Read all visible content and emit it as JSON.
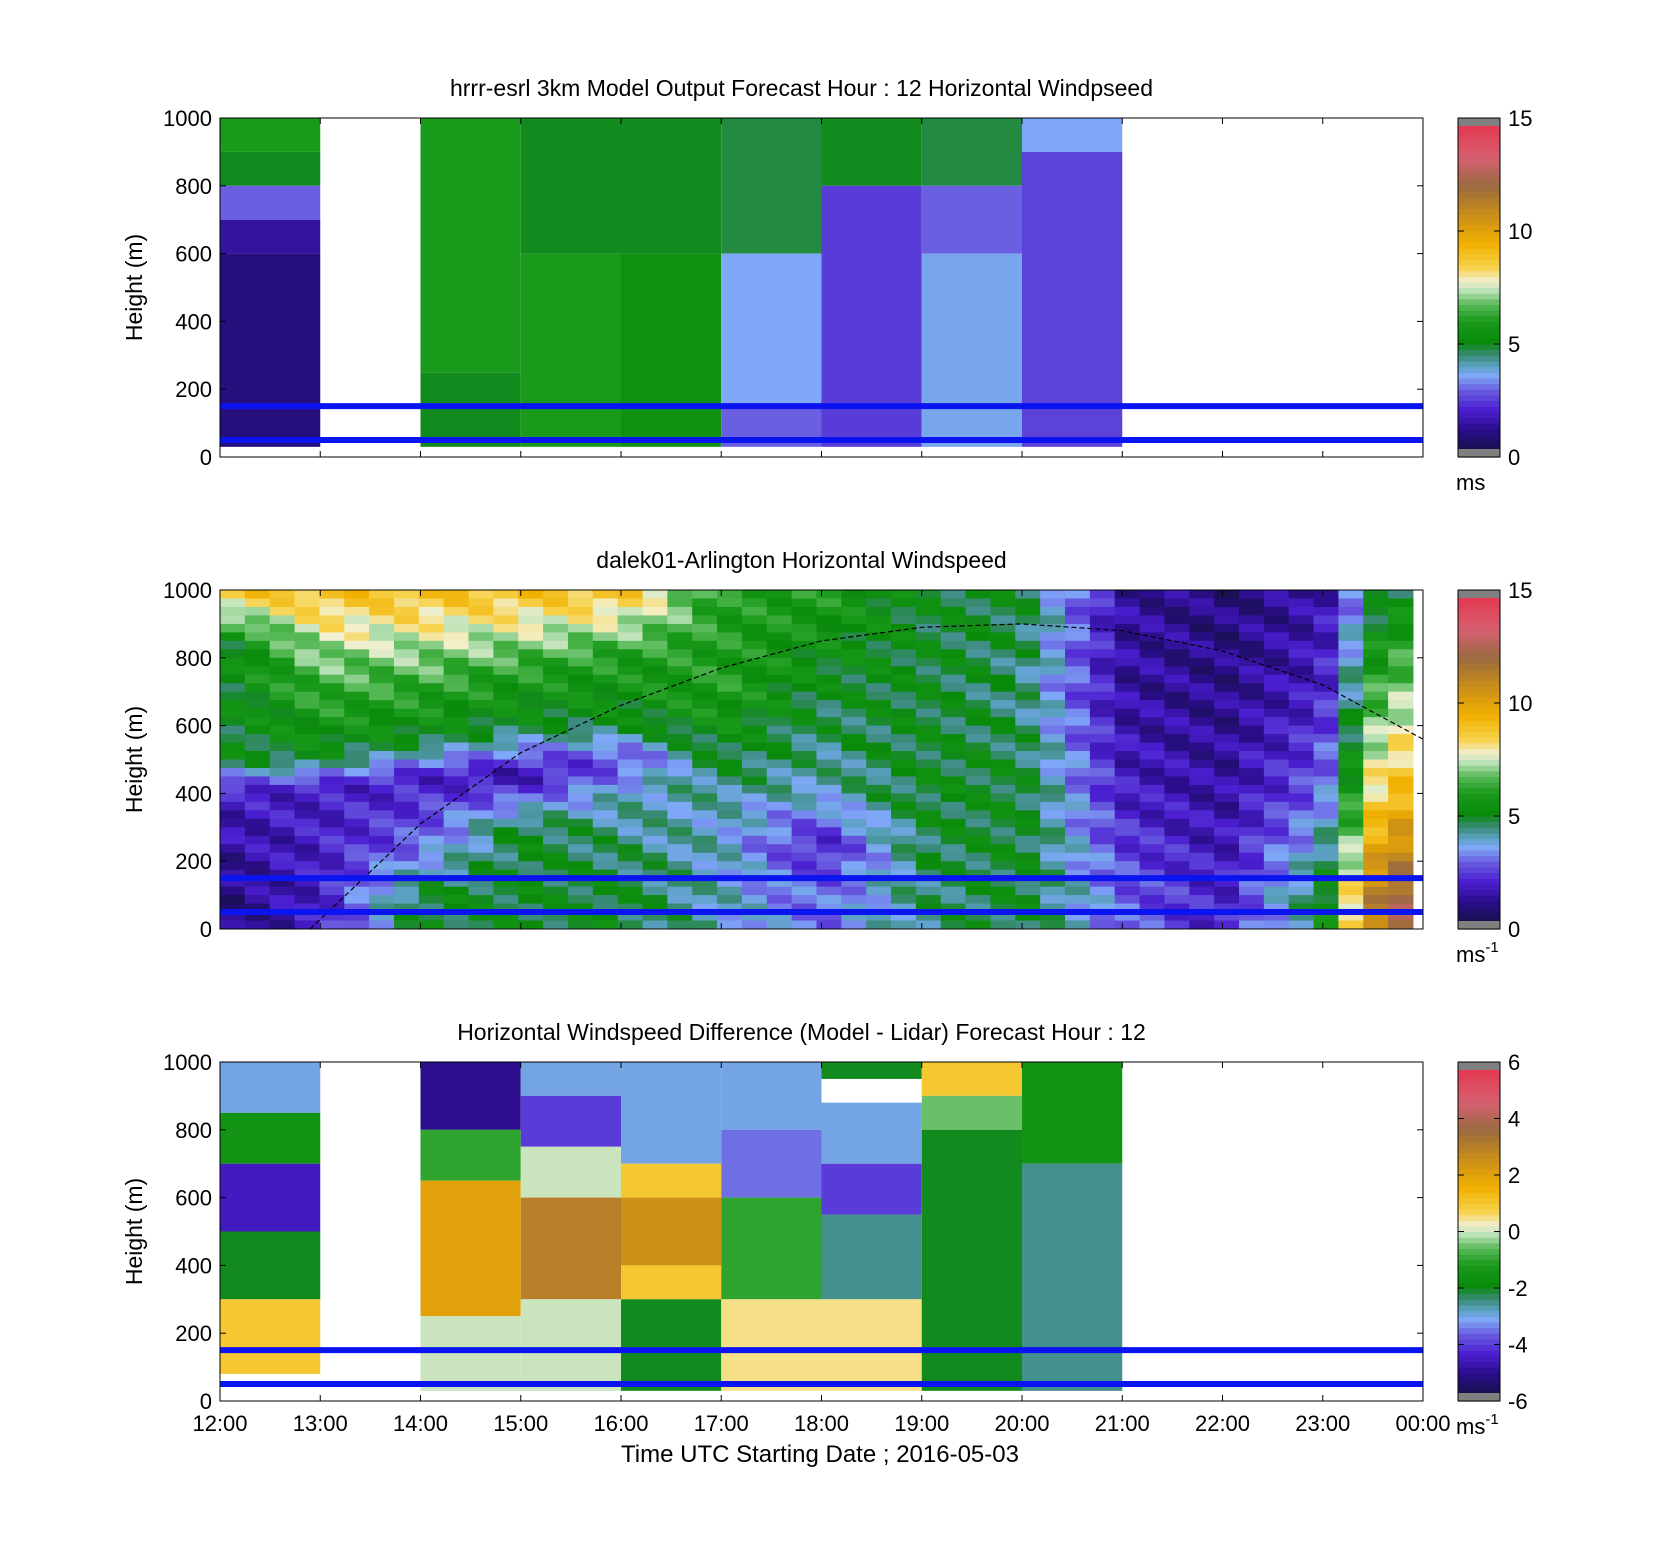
{
  "figure": {
    "xlabel": "Time UTC  Starting Date ; 2016-05-03",
    "x_ticks": [
      "12:00",
      "13:00",
      "14:00",
      "15:00",
      "16:00",
      "17:00",
      "18:00",
      "19:00",
      "20:00",
      "21:00",
      "22:00",
      "23:00",
      "00:00"
    ]
  },
  "chart_data": [
    {
      "type": "heatmap",
      "title": "hrrr-esrl 3km Model Output   Forecast Hour : 12 Horizontal Windpseed",
      "ylabel": "Height (m)",
      "xlim": [
        12,
        24
      ],
      "ylim": [
        0,
        1000
      ],
      "y_ticks": [
        "0",
        "200",
        "400",
        "600",
        "800",
        "1000"
      ],
      "colorbar": {
        "ticks": [
          "0",
          "5",
          "10",
          "15"
        ],
        "range": [
          0,
          15
        ],
        "unit": "ms",
        "unit_sup": ""
      },
      "reference_heights_m": [
        50,
        150
      ],
      "columns": [
        {
          "hour": 12,
          "values": [
            {
              "top": 1000,
              "bottom": 900,
              "speed": 6
            },
            {
              "top": 900,
              "bottom": 800,
              "speed": 5
            },
            {
              "top": 800,
              "bottom": 700,
              "speed": 3
            },
            {
              "top": 700,
              "bottom": 600,
              "speed": 1.5
            },
            {
              "top": 600,
              "bottom": 30,
              "speed": 1
            }
          ]
        },
        {
          "hour": 14,
          "values": [
            {
              "top": 1000,
              "bottom": 250,
              "speed": 6
            },
            {
              "top": 250,
              "bottom": 30,
              "speed": 5
            }
          ]
        },
        {
          "hour": 15,
          "values": [
            {
              "top": 1000,
              "bottom": 600,
              "speed": 5
            },
            {
              "top": 600,
              "bottom": 30,
              "speed": 6
            }
          ]
        },
        {
          "hour": 16,
          "values": [
            {
              "top": 1000,
              "bottom": 600,
              "speed": 5
            },
            {
              "top": 600,
              "bottom": 30,
              "speed": 5.5
            }
          ]
        },
        {
          "hour": 17,
          "values": [
            {
              "top": 1000,
              "bottom": 600,
              "speed": 4.8
            },
            {
              "top": 600,
              "bottom": 150,
              "speed": 3.6
            },
            {
              "top": 150,
              "bottom": 30,
              "speed": 3
            }
          ]
        },
        {
          "hour": 18,
          "values": [
            {
              "top": 1000,
              "bottom": 800,
              "speed": 5
            },
            {
              "top": 800,
              "bottom": 30,
              "speed": 2.5
            }
          ]
        },
        {
          "hour": 19,
          "values": [
            {
              "top": 1000,
              "bottom": 800,
              "speed": 4.8
            },
            {
              "top": 800,
              "bottom": 600,
              "speed": 3
            },
            {
              "top": 600,
              "bottom": 30,
              "speed": 3.7
            }
          ]
        },
        {
          "hour": 20,
          "values": [
            {
              "top": 1000,
              "bottom": 900,
              "speed": 3.6
            },
            {
              "top": 900,
              "bottom": 30,
              "speed": 2.6
            }
          ]
        }
      ]
    },
    {
      "type": "heatmap",
      "title": "dalek01-Arlington  Horizontal Windspeed",
      "ylabel": "Height (m)",
      "xlim": [
        12,
        24
      ],
      "ylim": [
        0,
        1000
      ],
      "y_ticks": [
        "0",
        "200",
        "400",
        "600",
        "800",
        "1000"
      ],
      "colorbar": {
        "ticks": [
          "0",
          "5",
          "10",
          "15"
        ],
        "range": [
          0,
          15
        ],
        "unit": "ms",
        "unit_sup": "-1"
      },
      "reference_heights_m": [
        50,
        150
      ],
      "mixing_layer_curve": [
        [
          12.9,
          0
        ],
        [
          14,
          310
        ],
        [
          15,
          520
        ],
        [
          16,
          660
        ],
        [
          17,
          770
        ],
        [
          18,
          850
        ],
        [
          19,
          890
        ],
        [
          20,
          900
        ],
        [
          21,
          880
        ],
        [
          22,
          820
        ],
        [
          23,
          720
        ],
        [
          24,
          560
        ]
      ],
      "column_profiles": [
        {
          "hour": 12.0,
          "speed_by_height": [
            [
              1000,
              9
            ],
            [
              850,
              5
            ],
            [
              500,
              5
            ],
            [
              400,
              2
            ],
            [
              100,
              1
            ]
          ]
        },
        {
          "hour": 13.0,
          "speed_by_height": [
            [
              1000,
              9
            ],
            [
              800,
              7
            ],
            [
              500,
              5
            ],
            [
              420,
              2
            ],
            [
              100,
              2
            ]
          ]
        },
        {
          "hour": 14.0,
          "speed_by_height": [
            [
              1000,
              9
            ],
            [
              800,
              7
            ],
            [
              550,
              5
            ],
            [
              450,
              2
            ],
            [
              250,
              3
            ],
            [
              100,
              5
            ]
          ]
        },
        {
          "hour": 15.0,
          "speed_by_height": [
            [
              1000,
              9
            ],
            [
              750,
              6
            ],
            [
              600,
              5
            ],
            [
              450,
              1.5
            ],
            [
              300,
              5
            ],
            [
              100,
              5
            ]
          ]
        },
        {
          "hour": 16.0,
          "speed_by_height": [
            [
              1000,
              9
            ],
            [
              800,
              6
            ],
            [
              600,
              5
            ],
            [
              500,
              2.5
            ],
            [
              400,
              4
            ],
            [
              100,
              5
            ]
          ]
        },
        {
          "hour": 17.0,
          "speed_by_height": [
            [
              1000,
              6
            ],
            [
              700,
              6
            ],
            [
              500,
              5
            ],
            [
              350,
              4
            ],
            [
              100,
              4
            ]
          ]
        },
        {
          "hour": 18.0,
          "speed_by_height": [
            [
              1000,
              6
            ],
            [
              700,
              5
            ],
            [
              400,
              4
            ],
            [
              250,
              2
            ],
            [
              100,
              3
            ]
          ]
        },
        {
          "hour": 19.0,
          "speed_by_height": [
            [
              1000,
              5
            ],
            [
              700,
              5
            ],
            [
              400,
              5
            ],
            [
              100,
              4.5
            ]
          ]
        },
        {
          "hour": 20.0,
          "speed_by_height": [
            [
              1000,
              5
            ],
            [
              700,
              4.5
            ],
            [
              400,
              5
            ],
            [
              100,
              5
            ]
          ]
        },
        {
          "hour": 21.0,
          "speed_by_height": [
            [
              1000,
              1.5
            ],
            [
              700,
              1.5
            ],
            [
              400,
              2
            ],
            [
              100,
              3
            ]
          ]
        },
        {
          "hour": 22.0,
          "speed_by_height": [
            [
              1000,
              1
            ],
            [
              700,
              1.2
            ],
            [
              400,
              1.5
            ],
            [
              100,
              2
            ]
          ]
        },
        {
          "hour": 23.0,
          "speed_by_height": [
            [
              1000,
              1.5
            ],
            [
              700,
              2
            ],
            [
              400,
              3
            ],
            [
              100,
              5
            ]
          ]
        },
        {
          "hour": 23.6,
          "speed_by_height": [
            [
              1000,
              5
            ],
            [
              700,
              7
            ],
            [
              400,
              9
            ],
            [
              100,
              12
            ]
          ]
        }
      ]
    },
    {
      "type": "heatmap",
      "title": "Horizontal Windspeed Difference (Model - Lidar) Forecast Hour : 12",
      "ylabel": "Height (m)",
      "xlim": [
        12,
        24
      ],
      "ylim": [
        0,
        1000
      ],
      "y_ticks": [
        "0",
        "200",
        "400",
        "600",
        "800",
        "1000"
      ],
      "colorbar": {
        "ticks": [
          "-6",
          "-4",
          "-2",
          "0",
          "2",
          "4",
          "6"
        ],
        "range": [
          -6,
          6
        ],
        "unit": "ms",
        "unit_sup": "-1"
      },
      "reference_heights_m": [
        50,
        150
      ],
      "columns": [
        {
          "hour": 12,
          "values": [
            {
              "top": 1000,
              "bottom": 850,
              "diff": -3
            },
            {
              "top": 850,
              "bottom": 700,
              "diff": -1.5
            },
            {
              "top": 700,
              "bottom": 500,
              "diff": -4.5
            },
            {
              "top": 500,
              "bottom": 300,
              "diff": -2
            },
            {
              "top": 300,
              "bottom": 80,
              "diff": 1
            }
          ]
        },
        {
          "hour": 14,
          "values": [
            {
              "top": 1000,
              "bottom": 800,
              "diff": -5
            },
            {
              "top": 800,
              "bottom": 650,
              "diff": -1
            },
            {
              "top": 650,
              "bottom": 250,
              "diff": 2
            },
            {
              "top": 250,
              "bottom": 30,
              "diff": 0
            }
          ]
        },
        {
          "hour": 15,
          "values": [
            {
              "top": 1000,
              "bottom": 900,
              "diff": -3
            },
            {
              "top": 900,
              "bottom": 750,
              "diff": -4
            },
            {
              "top": 750,
              "bottom": 600,
              "diff": 0
            },
            {
              "top": 600,
              "bottom": 300,
              "diff": 3
            },
            {
              "top": 300,
              "bottom": 30,
              "diff": 0
            }
          ]
        },
        {
          "hour": 16,
          "values": [
            {
              "top": 1000,
              "bottom": 700,
              "diff": -3
            },
            {
              "top": 700,
              "bottom": 600,
              "diff": 1
            },
            {
              "top": 600,
              "bottom": 400,
              "diff": 2.5
            },
            {
              "top": 400,
              "bottom": 300,
              "diff": 1
            },
            {
              "top": 300,
              "bottom": 30,
              "diff": -2
            }
          ]
        },
        {
          "hour": 17,
          "values": [
            {
              "top": 1000,
              "bottom": 800,
              "diff": -3
            },
            {
              "top": 800,
              "bottom": 600,
              "diff": -3.5
            },
            {
              "top": 600,
              "bottom": 300,
              "diff": -1
            },
            {
              "top": 300,
              "bottom": 30,
              "diff": 0.5
            }
          ]
        },
        {
          "hour": 18,
          "values": [
            {
              "top": 1000,
              "bottom": 950,
              "diff": -2
            },
            {
              "top": 880,
              "bottom": 700,
              "diff": -3
            },
            {
              "top": 700,
              "bottom": 550,
              "diff": -4
            },
            {
              "top": 550,
              "bottom": 300,
              "diff": -2.5
            },
            {
              "top": 300,
              "bottom": 30,
              "diff": 0.5
            }
          ]
        },
        {
          "hour": 19,
          "values": [
            {
              "top": 1000,
              "bottom": 900,
              "diff": 1
            },
            {
              "top": 900,
              "bottom": 800,
              "diff": -0.5
            },
            {
              "top": 800,
              "bottom": 30,
              "diff": -2
            }
          ]
        },
        {
          "hour": 20,
          "values": [
            {
              "top": 1000,
              "bottom": 700,
              "diff": -1.5
            },
            {
              "top": 700,
              "bottom": 30,
              "diff": -2.5
            }
          ]
        }
      ]
    }
  ]
}
